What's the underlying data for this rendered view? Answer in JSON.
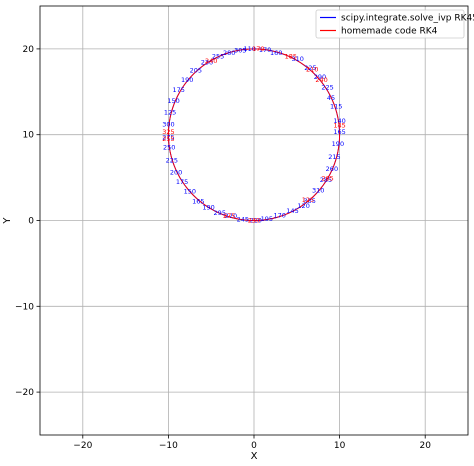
{
  "chart_data": {
    "type": "line",
    "title": "",
    "xlabel": "X",
    "ylabel": "Y",
    "xlim": [
      -25,
      25
    ],
    "ylim": [
      -25,
      25
    ],
    "xticks": [
      -20,
      -10,
      0,
      10,
      20
    ],
    "yticks": [
      -20,
      -10,
      0,
      10,
      20
    ],
    "xtick_labels": [
      "−20",
      "−10",
      "0",
      "10",
      "20"
    ],
    "ytick_labels": [
      "−20",
      "−10",
      "0",
      "10",
      "20"
    ],
    "grid": true,
    "legend_position": "top-right",
    "series": [
      {
        "name": "scipy.integrate.solve_ivp RK45",
        "color": "#0000ff",
        "circle": {
          "cx": 0,
          "cy": 10,
          "r": 10
        },
        "points": [
          {
            "x": -0.5,
            "y": 20.0,
            "label": "110"
          },
          {
            "x": 1.3,
            "y": 19.9,
            "label": "170"
          },
          {
            "x": 2.6,
            "y": 19.5,
            "label": "160"
          },
          {
            "x": 5.1,
            "y": 18.8,
            "label": "310"
          },
          {
            "x": 6.6,
            "y": 17.8,
            "label": "225"
          },
          {
            "x": 7.7,
            "y": 16.7,
            "label": "290"
          },
          {
            "x": 8.6,
            "y": 15.5,
            "label": "225"
          },
          {
            "x": 9.0,
            "y": 14.3,
            "label": "45"
          },
          {
            "x": 9.6,
            "y": 13.3,
            "label": "115"
          },
          {
            "x": 10.0,
            "y": 11.6,
            "label": "140"
          },
          {
            "x": 10.0,
            "y": 10.3,
            "label": "165"
          },
          {
            "x": 9.8,
            "y": 8.9,
            "label": "190"
          },
          {
            "x": 9.4,
            "y": 7.4,
            "label": "215"
          },
          {
            "x": 9.1,
            "y": 6.0,
            "label": "260"
          },
          {
            "x": 8.4,
            "y": 4.7,
            "label": "285"
          },
          {
            "x": 7.5,
            "y": 3.5,
            "label": "310"
          },
          {
            "x": 6.5,
            "y": 2.3,
            "label": "335"
          },
          {
            "x": 5.8,
            "y": 1.7,
            "label": "120"
          },
          {
            "x": 4.5,
            "y": 1.1,
            "label": "145"
          },
          {
            "x": 3.0,
            "y": 0.6,
            "label": "170"
          },
          {
            "x": 1.5,
            "y": 0.2,
            "label": "195"
          },
          {
            "x": 0.2,
            "y": 0.0,
            "label": "220"
          },
          {
            "x": -1.3,
            "y": 0.1,
            "label": "245"
          },
          {
            "x": -2.7,
            "y": 0.5,
            "label": "270"
          },
          {
            "x": -4.0,
            "y": 0.9,
            "label": "295"
          },
          {
            "x": -5.3,
            "y": 1.5,
            "label": "190"
          },
          {
            "x": -6.5,
            "y": 2.2,
            "label": "165"
          },
          {
            "x": -7.5,
            "y": 3.4,
            "label": "150"
          },
          {
            "x": -8.4,
            "y": 4.5,
            "label": "175"
          },
          {
            "x": -9.1,
            "y": 5.6,
            "label": "200"
          },
          {
            "x": -9.6,
            "y": 7.0,
            "label": "225"
          },
          {
            "x": -9.9,
            "y": 8.5,
            "label": "250"
          },
          {
            "x": -10.0,
            "y": 9.7,
            "label": "275"
          },
          {
            "x": -10.0,
            "y": 11.2,
            "label": "300"
          },
          {
            "x": -9.8,
            "y": 12.6,
            "label": "125"
          },
          {
            "x": -9.4,
            "y": 13.9,
            "label": "150"
          },
          {
            "x": -8.8,
            "y": 15.2,
            "label": "175"
          },
          {
            "x": -7.8,
            "y": 16.4,
            "label": "190"
          },
          {
            "x": -6.8,
            "y": 17.5,
            "label": "205"
          },
          {
            "x": -5.5,
            "y": 18.4,
            "label": "230"
          },
          {
            "x": -4.2,
            "y": 19.1,
            "label": "255"
          },
          {
            "x": -2.9,
            "y": 19.5,
            "label": "280"
          },
          {
            "x": -1.6,
            "y": 19.8,
            "label": "305"
          }
        ]
      },
      {
        "name": "homemade code RK4",
        "color": "#ff0000",
        "circle": {
          "cx": 0,
          "cy": 10,
          "r": 10
        },
        "points": [
          {
            "x": 0.5,
            "y": 20.0,
            "label": "170"
          },
          {
            "x": 4.3,
            "y": 19.1,
            "label": "185"
          },
          {
            "x": 6.8,
            "y": 17.6,
            "label": "210"
          },
          {
            "x": 7.9,
            "y": 16.4,
            "label": "240"
          },
          {
            "x": 10.0,
            "y": 11.1,
            "label": "145"
          },
          {
            "x": 8.6,
            "y": 4.9,
            "label": "265"
          },
          {
            "x": 6.3,
            "y": 2.4,
            "label": "125"
          },
          {
            "x": -2.9,
            "y": 0.5,
            "label": "275"
          },
          {
            "x": -10.0,
            "y": 10.3,
            "label": "325"
          },
          {
            "x": -10.0,
            "y": 9.5,
            "label": "255"
          },
          {
            "x": -5.0,
            "y": 18.6,
            "label": "240"
          },
          {
            "x": 0.0,
            "y": 0.0,
            "label": "230"
          }
        ]
      }
    ]
  }
}
